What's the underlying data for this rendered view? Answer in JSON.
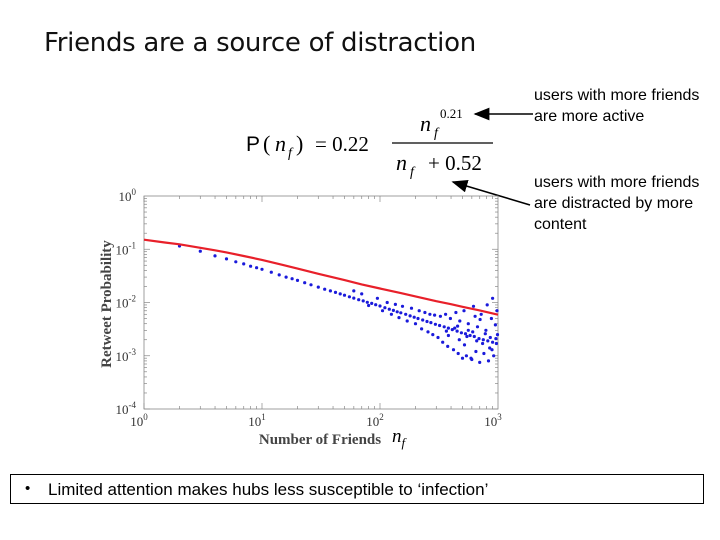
{
  "slide": {
    "title": "Friends are a source of distraction",
    "bullet": "Limited attention makes hubs less susceptible to ‘infection’",
    "bullet_marker": "•"
  },
  "formula": {
    "lhs_func": "P",
    "lhs_arg_var": "n",
    "lhs_arg_sub": "f",
    "equals_coeff": "= 0.22",
    "num_var": "n",
    "num_sub": "f",
    "num_exp": "0.21",
    "den_var": "n",
    "den_sub": "f",
    "den_add": "+ 0.52"
  },
  "annotations": {
    "active": "users with more friends are more active",
    "distracted": "users with more friends are distracted by more content"
  },
  "nf_label": {
    "var": "n",
    "sub": "f"
  },
  "colors": {
    "fit_line": "#e8202a",
    "points": "#1a1adb",
    "arrow": "#000000"
  },
  "chart_data": {
    "type": "scatter",
    "title": "",
    "xlabel": "Number of Friends",
    "ylabel": "Retweet Probability",
    "x_scale": "log",
    "y_scale": "log",
    "xlim": [
      1,
      1000
    ],
    "ylim": [
      0.0001,
      1
    ],
    "x_ticks": [
      {
        "value": 1,
        "base": "10",
        "exp": "0"
      },
      {
        "value": 10,
        "base": "10",
        "exp": "1"
      },
      {
        "value": 100,
        "base": "10",
        "exp": "2"
      },
      {
        "value": 1000,
        "base": "10",
        "exp": "3"
      }
    ],
    "y_ticks": [
      {
        "value": 1,
        "base": "10",
        "exp": "0"
      },
      {
        "value": 0.1,
        "base": "10",
        "exp": "-1"
      },
      {
        "value": 0.01,
        "base": "10",
        "exp": "-2"
      },
      {
        "value": 0.001,
        "base": "10",
        "exp": "-3"
      },
      {
        "value": 0.0001,
        "base": "10",
        "exp": "-4"
      }
    ],
    "grid": false,
    "series": [
      {
        "kind": "points",
        "points": [
          [
            2,
            0.115
          ],
          [
            3,
            0.092
          ],
          [
            4,
            0.075
          ],
          [
            5,
            0.066
          ],
          [
            6,
            0.058
          ],
          [
            7,
            0.053
          ],
          [
            8,
            0.048
          ],
          [
            9,
            0.045
          ],
          [
            10,
            0.042
          ],
          [
            12,
            0.037
          ],
          [
            14,
            0.033
          ],
          [
            16,
            0.03
          ],
          [
            18,
            0.028
          ],
          [
            20,
            0.026
          ],
          [
            23,
            0.0235
          ],
          [
            26,
            0.0215
          ],
          [
            30,
            0.0195
          ],
          [
            34,
            0.0178
          ],
          [
            38,
            0.0165
          ],
          [
            42,
            0.0155
          ],
          [
            46,
            0.0145
          ],
          [
            50,
            0.0137
          ],
          [
            55,
            0.0128
          ],
          [
            60,
            0.0121
          ],
          [
            66,
            0.0113
          ],
          [
            72,
            0.0107
          ],
          [
            78,
            0.0101
          ],
          [
            85,
            0.0096
          ],
          [
            92,
            0.0091
          ],
          [
            100,
            0.0086
          ],
          [
            110,
            0.008
          ],
          [
            120,
            0.0075
          ],
          [
            130,
            0.0071
          ],
          [
            140,
            0.0067
          ],
          [
            150,
            0.0064
          ],
          [
            165,
            0.006
          ],
          [
            180,
            0.0056
          ],
          [
            195,
            0.0053
          ],
          [
            210,
            0.005
          ],
          [
            230,
            0.0047
          ],
          [
            250,
            0.0044
          ],
          [
            270,
            0.0042
          ],
          [
            295,
            0.0039
          ],
          [
            320,
            0.0037
          ],
          [
            350,
            0.0035
          ],
          [
            380,
            0.0033
          ],
          [
            410,
            0.0031
          ],
          [
            450,
            0.0029
          ],
          [
            490,
            0.0027
          ],
          [
            530,
            0.0026
          ],
          [
            580,
            0.0024
          ],
          [
            630,
            0.0023
          ],
          [
            690,
            0.0021
          ],
          [
            750,
            0.002
          ],
          [
            820,
            0.0019
          ],
          [
            900,
            0.0018
          ],
          [
            970,
            0.0017
          ],
          [
            60,
            0.0165
          ],
          [
            70,
            0.0145
          ],
          [
            80,
            0.0088
          ],
          [
            95,
            0.012
          ],
          [
            105,
            0.007
          ],
          [
            115,
            0.01
          ],
          [
            125,
            0.006
          ],
          [
            135,
            0.0092
          ],
          [
            145,
            0.0052
          ],
          [
            155,
            0.0085
          ],
          [
            170,
            0.0045
          ],
          [
            185,
            0.0078
          ],
          [
            200,
            0.004
          ],
          [
            215,
            0.007
          ],
          [
            225,
            0.0032
          ],
          [
            240,
            0.0065
          ],
          [
            255,
            0.0028
          ],
          [
            265,
            0.006
          ],
          [
            280,
            0.0025
          ],
          [
            290,
            0.0058
          ],
          [
            310,
            0.0022
          ],
          [
            325,
            0.0055
          ],
          [
            340,
            0.0018
          ],
          [
            360,
            0.006
          ],
          [
            375,
            0.0015
          ],
          [
            395,
            0.005
          ],
          [
            420,
            0.0013
          ],
          [
            440,
            0.0065
          ],
          [
            460,
            0.0011
          ],
          [
            475,
            0.0045
          ],
          [
            500,
            0.0009
          ],
          [
            515,
            0.007
          ],
          [
            540,
            0.001
          ],
          [
            560,
            0.004
          ],
          [
            600,
            0.00085
          ],
          [
            620,
            0.0085
          ],
          [
            650,
            0.0012
          ],
          [
            670,
            0.0035
          ],
          [
            700,
            0.00075
          ],
          [
            720,
            0.006
          ],
          [
            760,
            0.0011
          ],
          [
            790,
            0.003
          ],
          [
            810,
            0.009
          ],
          [
            850,
            0.0014
          ],
          [
            880,
            0.005
          ],
          [
            920,
            0.001
          ],
          [
            950,
            0.0038
          ],
          [
            990,
            0.0025
          ],
          [
            430,
            0.0033
          ],
          [
            520,
            0.0016
          ],
          [
            610,
            0.0028
          ],
          [
            740,
            0.0017
          ],
          [
            860,
            0.0022
          ],
          [
            380,
            0.0024
          ],
          [
            470,
            0.002
          ],
          [
            560,
            0.003
          ],
          [
            660,
            0.0019
          ],
          [
            780,
            0.0026
          ],
          [
            890,
            0.0013
          ],
          [
            960,
            0.0021
          ],
          [
            590,
            0.0009
          ],
          [
            830,
            0.0008
          ],
          [
            900,
            0.012
          ],
          [
            980,
            0.007
          ],
          [
            705,
            0.0048
          ],
          [
            640,
            0.0055
          ],
          [
            545,
            0.0023
          ],
          [
            455,
            0.0036
          ],
          [
            365,
            0.0029
          ]
        ]
      },
      {
        "kind": "line",
        "formula_params": {
          "a": 0.22,
          "b": 0.21,
          "c": 0.52
        },
        "x": [
          1,
          1.5,
          2,
          3,
          4,
          5,
          7,
          10,
          15,
          20,
          30,
          40,
          50,
          70,
          100,
          150,
          200,
          300,
          400,
          500,
          700,
          1000
        ],
        "y": [
          0.1514,
          0.1341,
          0.124,
          0.1065,
          0.0955,
          0.0871,
          0.0747,
          0.063,
          0.0508,
          0.0433,
          0.0346,
          0.0297,
          0.0263,
          0.0219,
          0.0183,
          0.015,
          0.013,
          0.0106,
          0.0093,
          0.0083,
          0.0071,
          0.0059
        ]
      }
    ]
  }
}
